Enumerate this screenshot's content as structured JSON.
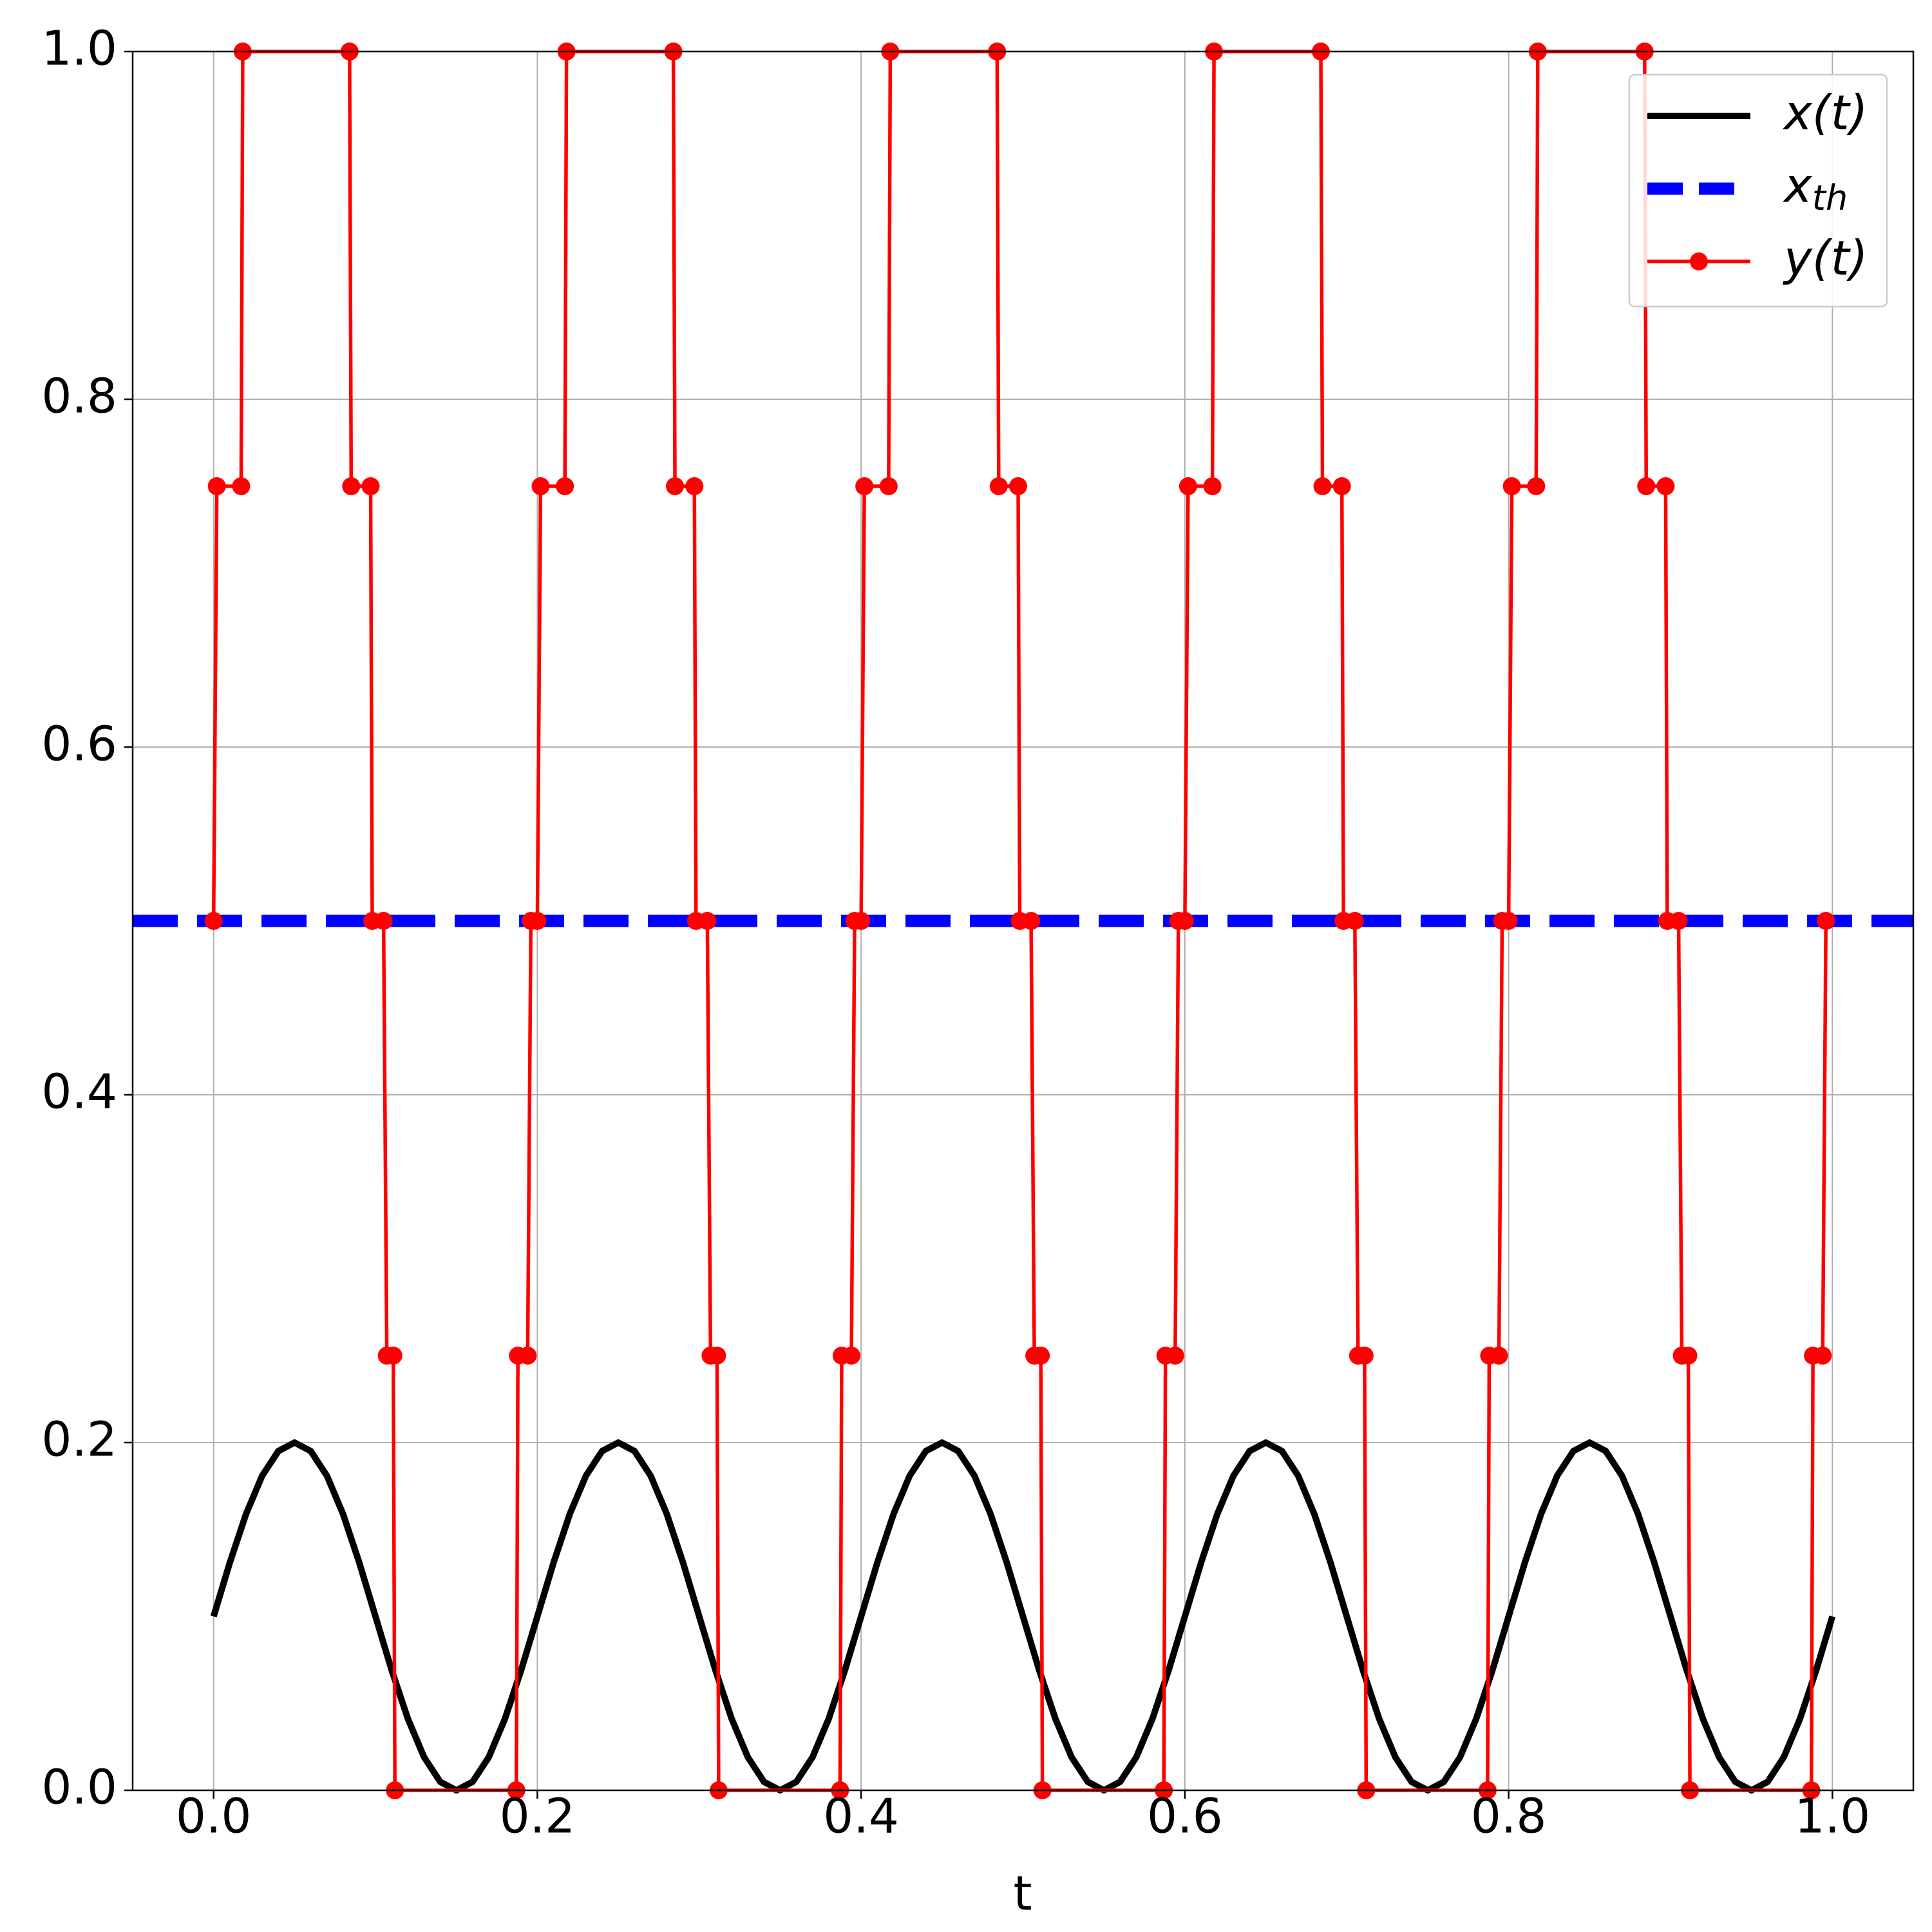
{
  "chart_data": {
    "type": "line",
    "xlabel": "t",
    "xlim": [
      -0.05,
      1.05
    ],
    "ylim": [
      0,
      1
    ],
    "xticks": [
      {
        "value": 0,
        "label": "0.0"
      },
      {
        "value": 0.2,
        "label": "0.2"
      },
      {
        "value": 0.4,
        "label": "0.4"
      },
      {
        "value": 0.6,
        "label": "0.6"
      },
      {
        "value": 0.8,
        "label": "0.8"
      },
      {
        "value": 1,
        "label": "1.0"
      }
    ],
    "yticks": [
      {
        "value": 0,
        "label": "0.0"
      },
      {
        "value": 0.2,
        "label": "0.2"
      },
      {
        "value": 0.4,
        "label": "0.4"
      },
      {
        "value": 0.6,
        "label": "0.6"
      },
      {
        "value": 0.8,
        "label": "0.8"
      },
      {
        "value": 1,
        "label": "1.0"
      }
    ],
    "grid": true,
    "legend": "upper right",
    "series": [
      {
        "name": "x(t)",
        "color": "#000000",
        "style": "solid",
        "x": [
          0,
          0.01,
          0.02,
          0.03,
          0.04,
          0.05,
          0.06,
          0.07,
          0.08,
          0.09,
          0.1,
          0.11,
          0.12,
          0.13,
          0.14,
          0.15,
          0.16,
          0.17,
          0.18,
          0.19,
          0.2,
          0.21,
          0.22,
          0.23,
          0.24,
          0.25,
          0.26,
          0.27,
          0.28,
          0.29,
          0.3,
          0.31,
          0.32,
          0.33,
          0.34,
          0.35,
          0.36,
          0.37,
          0.38,
          0.39,
          0.4,
          0.41,
          0.42,
          0.43,
          0.44,
          0.45,
          0.46,
          0.47,
          0.48,
          0.49,
          0.5,
          0.51,
          0.52,
          0.53,
          0.54,
          0.55,
          0.56,
          0.57,
          0.58,
          0.59,
          0.6,
          0.61,
          0.62,
          0.63,
          0.64,
          0.65,
          0.66,
          0.67,
          0.68,
          0.69,
          0.7,
          0.71,
          0.72,
          0.73,
          0.74,
          0.75,
          0.76,
          0.77,
          0.78,
          0.79,
          0.8,
          0.81,
          0.82,
          0.83,
          0.84,
          0.85,
          0.86,
          0.87,
          0.88,
          0.89,
          0.9,
          0.91,
          0.92,
          0.93,
          0.94,
          0.95,
          0.96,
          0.97,
          0.98,
          0.99,
          1
        ],
        "values": [
          0.1,
          0.1309,
          0.1588,
          0.1809,
          0.1951,
          0.2,
          0.1951,
          0.1809,
          0.1588,
          0.1309,
          0.1,
          0.0691,
          0.0412,
          0.0191,
          0.0049,
          0,
          0.0049,
          0.0191,
          0.0412,
          0.0691,
          0.1,
          0.1309,
          0.1588,
          0.1809,
          0.1951,
          0.2,
          0.1951,
          0.1809,
          0.1588,
          0.1309,
          0.1,
          0.0691,
          0.0412,
          0.0191,
          0.0049,
          0,
          0.0049,
          0.0191,
          0.0412,
          0.0691,
          0.1,
          0.1309,
          0.1588,
          0.1809,
          0.1951,
          0.2,
          0.1951,
          0.1809,
          0.1588,
          0.1309,
          0.1,
          0.0691,
          0.0412,
          0.0191,
          0.0049,
          0,
          0.0049,
          0.0191,
          0.0412,
          0.0691,
          0.1,
          0.1309,
          0.1588,
          0.1809,
          0.1951,
          0.2,
          0.1951,
          0.1809,
          0.1588,
          0.1309,
          0.1,
          0.0691,
          0.0412,
          0.0191,
          0.0049,
          0,
          0.0049,
          0.0191,
          0.0412,
          0.0691,
          0.1,
          0.1309,
          0.1588,
          0.1809,
          0.1951,
          0.2,
          0.1951,
          0.1809,
          0.1588,
          0.1309,
          0.1,
          0.0691,
          0.0412,
          0.0191,
          0.0049,
          0,
          0.0049,
          0.0191,
          0.0412,
          0.0691,
          0.1
        ]
      },
      {
        "name": "x_th",
        "color": "#0000ff",
        "style": "dashed",
        "hline": 0.5
      },
      {
        "name": "y(t)",
        "color": "#ff0000",
        "style": "solid",
        "markers": true,
        "x": [
          0,
          0.002,
          0.017,
          0.018,
          0.084,
          0.085,
          0.097,
          0.098,
          0.105,
          0.107,
          0.111,
          0.112,
          0.187,
          0.188,
          0.194,
          0.196,
          0.2,
          0.202,
          0.217,
          0.218,
          0.284,
          0.285,
          0.297,
          0.298,
          0.305,
          0.307,
          0.311,
          0.312,
          0.387,
          0.388,
          0.394,
          0.396,
          0.4,
          0.402,
          0.417,
          0.418,
          0.484,
          0.485,
          0.497,
          0.498,
          0.505,
          0.507,
          0.511,
          0.512,
          0.587,
          0.588,
          0.594,
          0.596,
          0.6,
          0.602,
          0.617,
          0.618,
          0.684,
          0.685,
          0.697,
          0.698,
          0.705,
          0.707,
          0.711,
          0.712,
          0.787,
          0.788,
          0.794,
          0.796,
          0.8,
          0.802,
          0.817,
          0.818,
          0.884,
          0.885,
          0.897,
          0.898,
          0.905,
          0.907,
          0.911,
          0.912,
          0.987,
          0.988,
          0.994,
          0.996
        ],
        "values": [
          0.5,
          0.75,
          0.75,
          1,
          1,
          0.75,
          0.75,
          0.5,
          0.5,
          0.25,
          0.25,
          0,
          0,
          0.25,
          0.25,
          0.5,
          0.5,
          0.75,
          0.75,
          1,
          1,
          0.75,
          0.75,
          0.5,
          0.5,
          0.25,
          0.25,
          0,
          0,
          0.25,
          0.25,
          0.5,
          0.5,
          0.75,
          0.75,
          1,
          1,
          0.75,
          0.75,
          0.5,
          0.5,
          0.25,
          0.25,
          0,
          0,
          0.25,
          0.25,
          0.5,
          0.5,
          0.75,
          0.75,
          1,
          1,
          0.75,
          0.75,
          0.5,
          0.5,
          0.25,
          0.25,
          0,
          0,
          0.25,
          0.25,
          0.5,
          0.5,
          0.75,
          0.75,
          1,
          1,
          0.75,
          0.75,
          0.5,
          0.5,
          0.25,
          0.25,
          0,
          0,
          0.25,
          0.25,
          0.5
        ]
      }
    ]
  }
}
